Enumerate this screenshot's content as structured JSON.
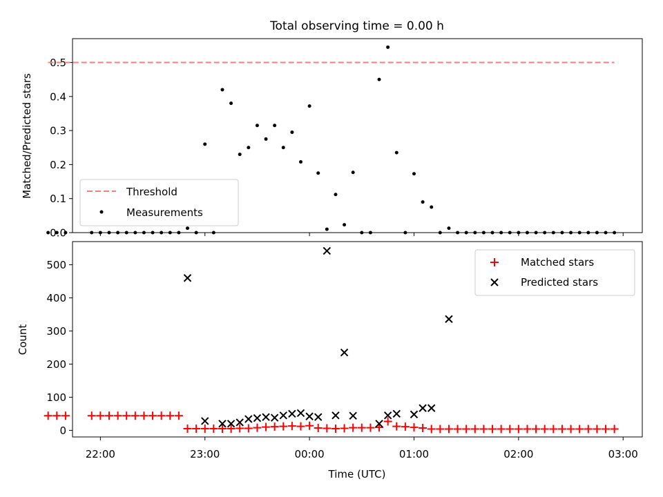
{
  "chart_data": [
    {
      "type": "scatter",
      "title": "Total observing time = 0.00 h",
      "xlabel": "",
      "ylabel": "Matched/Predicted stars",
      "xlim": [
        "21:44",
        "03:11"
      ],
      "ylim": [
        0,
        0.57
      ],
      "xticks": [
        "22:00",
        "23:00",
        "00:00",
        "01:00",
        "02:00",
        "03:00"
      ],
      "yticks": [
        "0.0",
        "0.1",
        "0.2",
        "0.3",
        "0.4",
        "0.5"
      ],
      "legend": {
        "position": "lower-left",
        "entries": [
          "Threshold",
          "Measurements"
        ]
      },
      "series": [
        {
          "name": "Threshold",
          "style": "dashed-line",
          "color": "#f28080",
          "points": [
            [
              "21:30",
              0.5
            ],
            [
              "02:55",
              0.5
            ]
          ]
        },
        {
          "name": "Measurements",
          "style": "dots",
          "color": "#000000",
          "points": [
            [
              "21:30",
              0
            ],
            [
              "21:35",
              0
            ],
            [
              "21:40",
              0
            ],
            [
              "21:55",
              0
            ],
            [
              "22:00",
              0
            ],
            [
              "22:05",
              0
            ],
            [
              "22:10",
              0
            ],
            [
              "22:15",
              0
            ],
            [
              "22:20",
              0
            ],
            [
              "22:25",
              0
            ],
            [
              "22:30",
              0
            ],
            [
              "22:35",
              0
            ],
            [
              "22:40",
              0
            ],
            [
              "22:45",
              0
            ],
            [
              "22:50",
              0.013
            ],
            [
              "22:55",
              0
            ],
            [
              "23:00",
              0.26
            ],
            [
              "23:05",
              0
            ],
            [
              "23:10",
              0.42
            ],
            [
              "23:15",
              0.38
            ],
            [
              "23:20",
              0.23
            ],
            [
              "23:25",
              0.25
            ],
            [
              "23:30",
              0.315
            ],
            [
              "23:35",
              0.275
            ],
            [
              "23:40",
              0.315
            ],
            [
              "23:45",
              0.25
            ],
            [
              "23:50",
              0.295
            ],
            [
              "23:55",
              0.208
            ],
            [
              "00:00",
              0.372
            ],
            [
              "00:05",
              0.175
            ],
            [
              "00:10",
              0.01
            ],
            [
              "00:15",
              0.112
            ],
            [
              "00:20",
              0.023
            ],
            [
              "00:25",
              0.177
            ],
            [
              "00:30",
              0
            ],
            [
              "00:35",
              0
            ],
            [
              "00:40",
              0.45
            ],
            [
              "00:45",
              0.545
            ],
            [
              "00:50",
              0.235
            ],
            [
              "00:55",
              0
            ],
            [
              "01:00",
              0.173
            ],
            [
              "01:05",
              0.09
            ],
            [
              "01:10",
              0.075
            ],
            [
              "01:15",
              0
            ],
            [
              "01:20",
              0.013
            ],
            [
              "01:25",
              0
            ],
            [
              "01:30",
              0
            ],
            [
              "01:35",
              0
            ],
            [
              "01:40",
              0
            ],
            [
              "01:45",
              0
            ],
            [
              "01:50",
              0
            ],
            [
              "01:55",
              0
            ],
            [
              "02:00",
              0
            ],
            [
              "02:05",
              0
            ],
            [
              "02:10",
              0
            ],
            [
              "02:15",
              0
            ],
            [
              "02:20",
              0
            ],
            [
              "02:25",
              0
            ],
            [
              "02:30",
              0
            ],
            [
              "02:35",
              0
            ],
            [
              "02:40",
              0
            ],
            [
              "02:45",
              0
            ],
            [
              "02:50",
              0
            ],
            [
              "02:55",
              0
            ]
          ]
        }
      ]
    },
    {
      "type": "scatter",
      "title": "",
      "xlabel": "Time (UTC)",
      "ylabel": "Count",
      "xlim": [
        "21:44",
        "03:11"
      ],
      "ylim": [
        -20,
        570
      ],
      "xticks": [
        "22:00",
        "23:00",
        "00:00",
        "01:00",
        "02:00",
        "03:00"
      ],
      "yticks": [
        "0",
        "100",
        "200",
        "300",
        "400",
        "500"
      ],
      "legend": {
        "position": "top-right",
        "entries": [
          "Matched stars",
          "Predicted stars"
        ]
      },
      "series": [
        {
          "name": "Matched stars",
          "marker": "plus",
          "color": "#ff0000",
          "points": [
            [
              "21:30",
              44
            ],
            [
              "21:35",
              44
            ],
            [
              "21:40",
              44
            ],
            [
              "21:55",
              44
            ],
            [
              "22:00",
              44
            ],
            [
              "22:05",
              44
            ],
            [
              "22:10",
              44
            ],
            [
              "22:15",
              44
            ],
            [
              "22:20",
              44
            ],
            [
              "22:25",
              44
            ],
            [
              "22:30",
              44
            ],
            [
              "22:35",
              44
            ],
            [
              "22:40",
              44
            ],
            [
              "22:45",
              44
            ],
            [
              "22:50",
              5
            ],
            [
              "22:55",
              5
            ],
            [
              "23:00",
              5
            ],
            [
              "23:05",
              5
            ],
            [
              "23:10",
              5
            ],
            [
              "23:15",
              5
            ],
            [
              "23:20",
              6
            ],
            [
              "23:25",
              6
            ],
            [
              "23:30",
              8
            ],
            [
              "23:35",
              10
            ],
            [
              "23:40",
              11
            ],
            [
              "23:45",
              12
            ],
            [
              "23:50",
              13
            ],
            [
              "23:55",
              12
            ],
            [
              "00:00",
              14
            ],
            [
              "00:05",
              7
            ],
            [
              "00:10",
              6
            ],
            [
              "00:15",
              5
            ],
            [
              "00:20",
              6
            ],
            [
              "00:25",
              8
            ],
            [
              "00:30",
              8
            ],
            [
              "00:35",
              8
            ],
            [
              "00:40",
              9
            ],
            [
              "00:45",
              27
            ],
            [
              "00:50",
              12
            ],
            [
              "00:55",
              11
            ],
            [
              "01:00",
              9
            ],
            [
              "01:05",
              7
            ],
            [
              "01:10",
              4
            ],
            [
              "01:15",
              4
            ],
            [
              "01:20",
              4
            ],
            [
              "01:25",
              4
            ],
            [
              "01:30",
              4
            ],
            [
              "01:35",
              4
            ],
            [
              "01:40",
              4
            ],
            [
              "01:45",
              4
            ],
            [
              "01:50",
              4
            ],
            [
              "01:55",
              4
            ],
            [
              "02:00",
              4
            ],
            [
              "02:05",
              4
            ],
            [
              "02:10",
              4
            ],
            [
              "02:15",
              4
            ],
            [
              "02:20",
              4
            ],
            [
              "02:25",
              4
            ],
            [
              "02:30",
              4
            ],
            [
              "02:35",
              4
            ],
            [
              "02:40",
              4
            ],
            [
              "02:45",
              4
            ],
            [
              "02:50",
              4
            ],
            [
              "02:55",
              4
            ]
          ]
        },
        {
          "name": "Predicted stars",
          "marker": "x",
          "color": "#000000",
          "points": [
            [
              "22:50",
              460
            ],
            [
              "23:00",
              28
            ],
            [
              "23:10",
              20
            ],
            [
              "23:15",
              20
            ],
            [
              "23:20",
              24
            ],
            [
              "23:25",
              34
            ],
            [
              "23:30",
              37
            ],
            [
              "23:35",
              40
            ],
            [
              "23:40",
              38
            ],
            [
              "23:45",
              45
            ],
            [
              "23:50",
              50
            ],
            [
              "23:55",
              52
            ],
            [
              "00:00",
              42
            ],
            [
              "00:05",
              40
            ],
            [
              "00:10",
              542
            ],
            [
              "00:15",
              45
            ],
            [
              "00:20",
              235
            ],
            [
              "00:25",
              44
            ],
            [
              "00:40",
              20
            ],
            [
              "00:45",
              45
            ],
            [
              "00:50",
              50
            ],
            [
              "01:00",
              48
            ],
            [
              "01:05",
              67
            ],
            [
              "01:10",
              67
            ],
            [
              "01:20",
              336
            ]
          ]
        }
      ]
    }
  ]
}
